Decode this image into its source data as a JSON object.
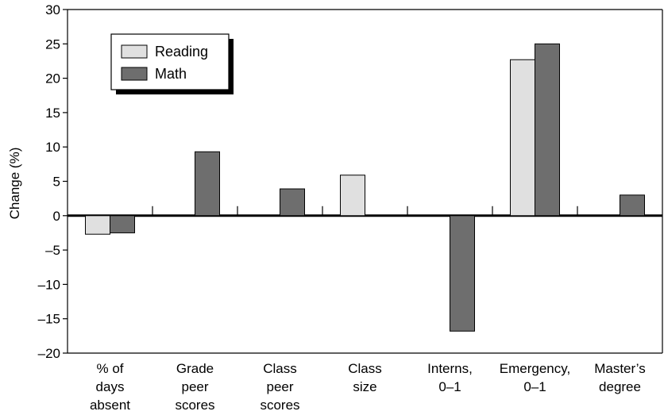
{
  "chart_data": {
    "type": "bar",
    "title": "",
    "xlabel": "",
    "ylabel": "Change (%)",
    "ylim": [
      -20,
      30
    ],
    "yticks": [
      30,
      25,
      20,
      15,
      10,
      5,
      0,
      -5,
      -10,
      -15,
      -20
    ],
    "ytick_labels": [
      "30",
      "25",
      "20",
      "15",
      "10",
      "5",
      "0",
      "–5",
      "–10",
      "–15",
      "–20"
    ],
    "categories": [
      [
        "% of",
        "days",
        "absent"
      ],
      [
        "Grade",
        "peer",
        "scores"
      ],
      [
        "Class",
        "peer",
        "scores"
      ],
      [
        "Class",
        "size"
      ],
      [
        "Interns,",
        "0–1"
      ],
      [
        "Emergency,",
        "0–1"
      ],
      [
        "Master’s",
        "degree"
      ]
    ],
    "series": [
      {
        "name": "Reading",
        "color": "#e0e0e0",
        "values": [
          -2.7,
          null,
          null,
          5.9,
          null,
          22.7,
          null
        ]
      },
      {
        "name": "Math",
        "color": "#6e6e6e",
        "values": [
          -2.5,
          9.3,
          3.9,
          null,
          -16.8,
          25.0,
          3.0
        ]
      }
    ],
    "legend": {
      "position": "top-left",
      "shadow": true
    },
    "grid": false
  }
}
